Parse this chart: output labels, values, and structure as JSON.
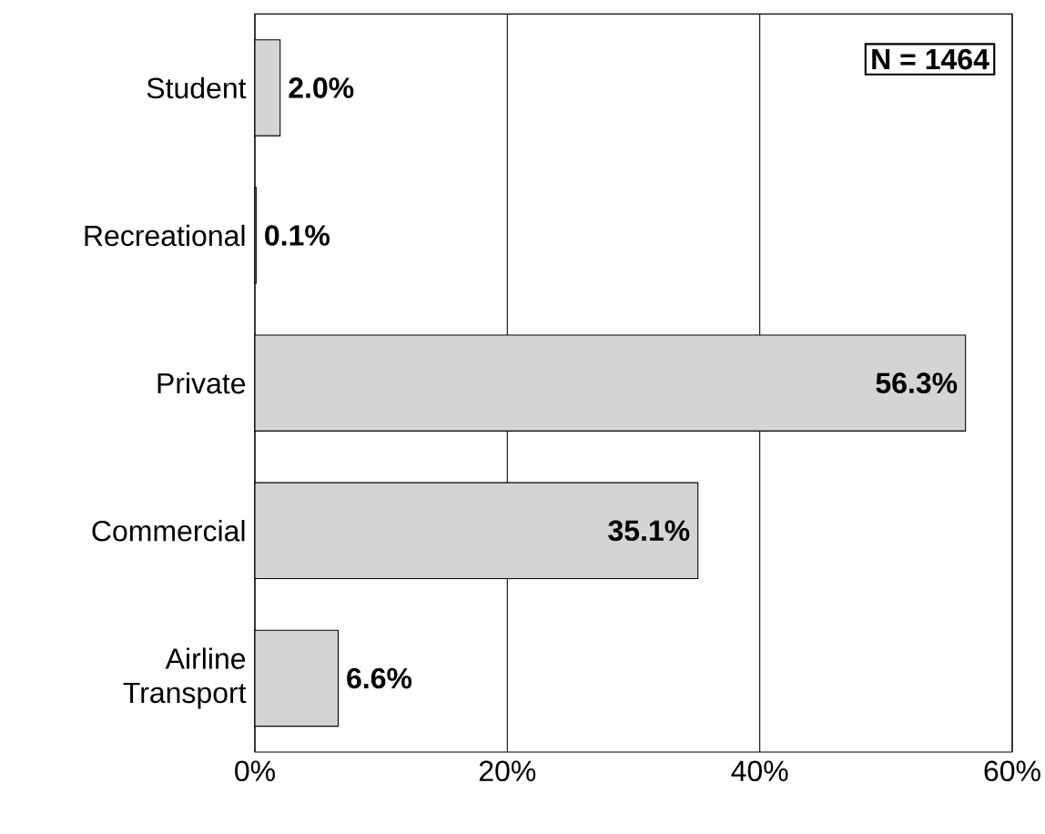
{
  "chart_data": {
    "type": "bar",
    "orientation": "horizontal",
    "categories": [
      "Student",
      "Recreational",
      "Private",
      "Commercial",
      "Airline Transport"
    ],
    "values": [
      2.0,
      0.1,
      56.3,
      35.1,
      6.6
    ],
    "value_labels": [
      "2.0%",
      "0.1%",
      "56.3%",
      "35.1%",
      "6.6%"
    ],
    "color": "#d4d4d4",
    "xlim": [
      0,
      60
    ],
    "xticks": [
      {
        "value": 0,
        "label": "0%"
      },
      {
        "value": 20,
        "label": "20%"
      },
      {
        "value": 40,
        "label": "40%"
      },
      {
        "value": 60,
        "label": "60%"
      }
    ],
    "grid": "x",
    "annotations": [
      "N = 1464"
    ]
  }
}
